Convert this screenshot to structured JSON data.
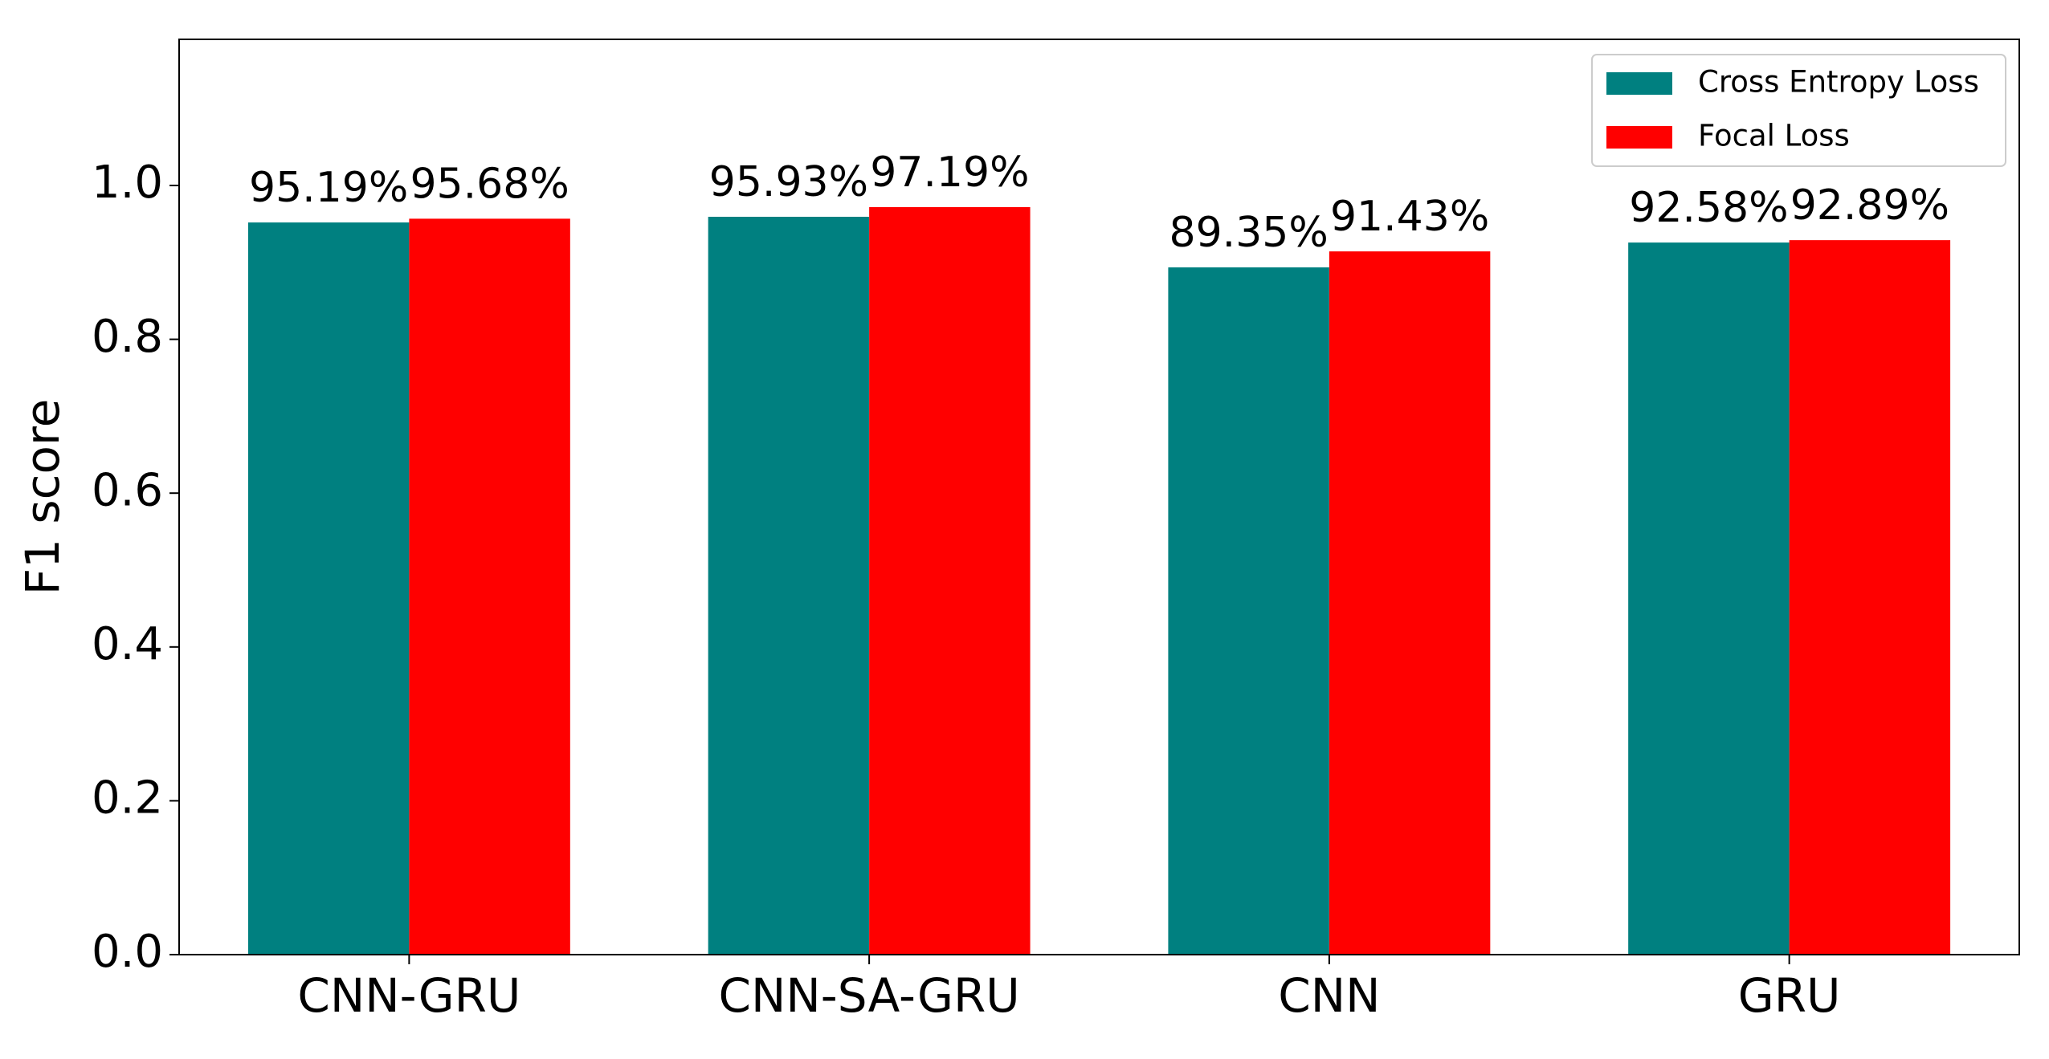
{
  "chart_data": {
    "type": "bar",
    "ylabel": "F1 score",
    "categories": [
      "CNN-GRU",
      "CNN-SA-GRU",
      "CNN",
      "GRU"
    ],
    "series": [
      {
        "name": "Cross Entropy Loss",
        "color": "#008080",
        "values": [
          0.9519,
          0.9593,
          0.8935,
          0.9258
        ],
        "value_labels": [
          "95.19%",
          "95.93%",
          "89.35%",
          "92.58%"
        ]
      },
      {
        "name": "Focal Loss",
        "color": "#ff0000",
        "values": [
          0.9568,
          0.9719,
          0.9143,
          0.9289
        ],
        "value_labels": [
          "95.68%",
          "97.19%",
          "91.43%",
          "92.89%"
        ]
      }
    ],
    "ylim": [
      0,
      1.19
    ],
    "yticks": [
      {
        "value": 0,
        "label": "0.0"
      },
      0.2,
      0.4,
      0.6,
      0.8,
      {
        "value": 1,
        "label": "1.0"
      }
    ],
    "legend": "upper right"
  }
}
